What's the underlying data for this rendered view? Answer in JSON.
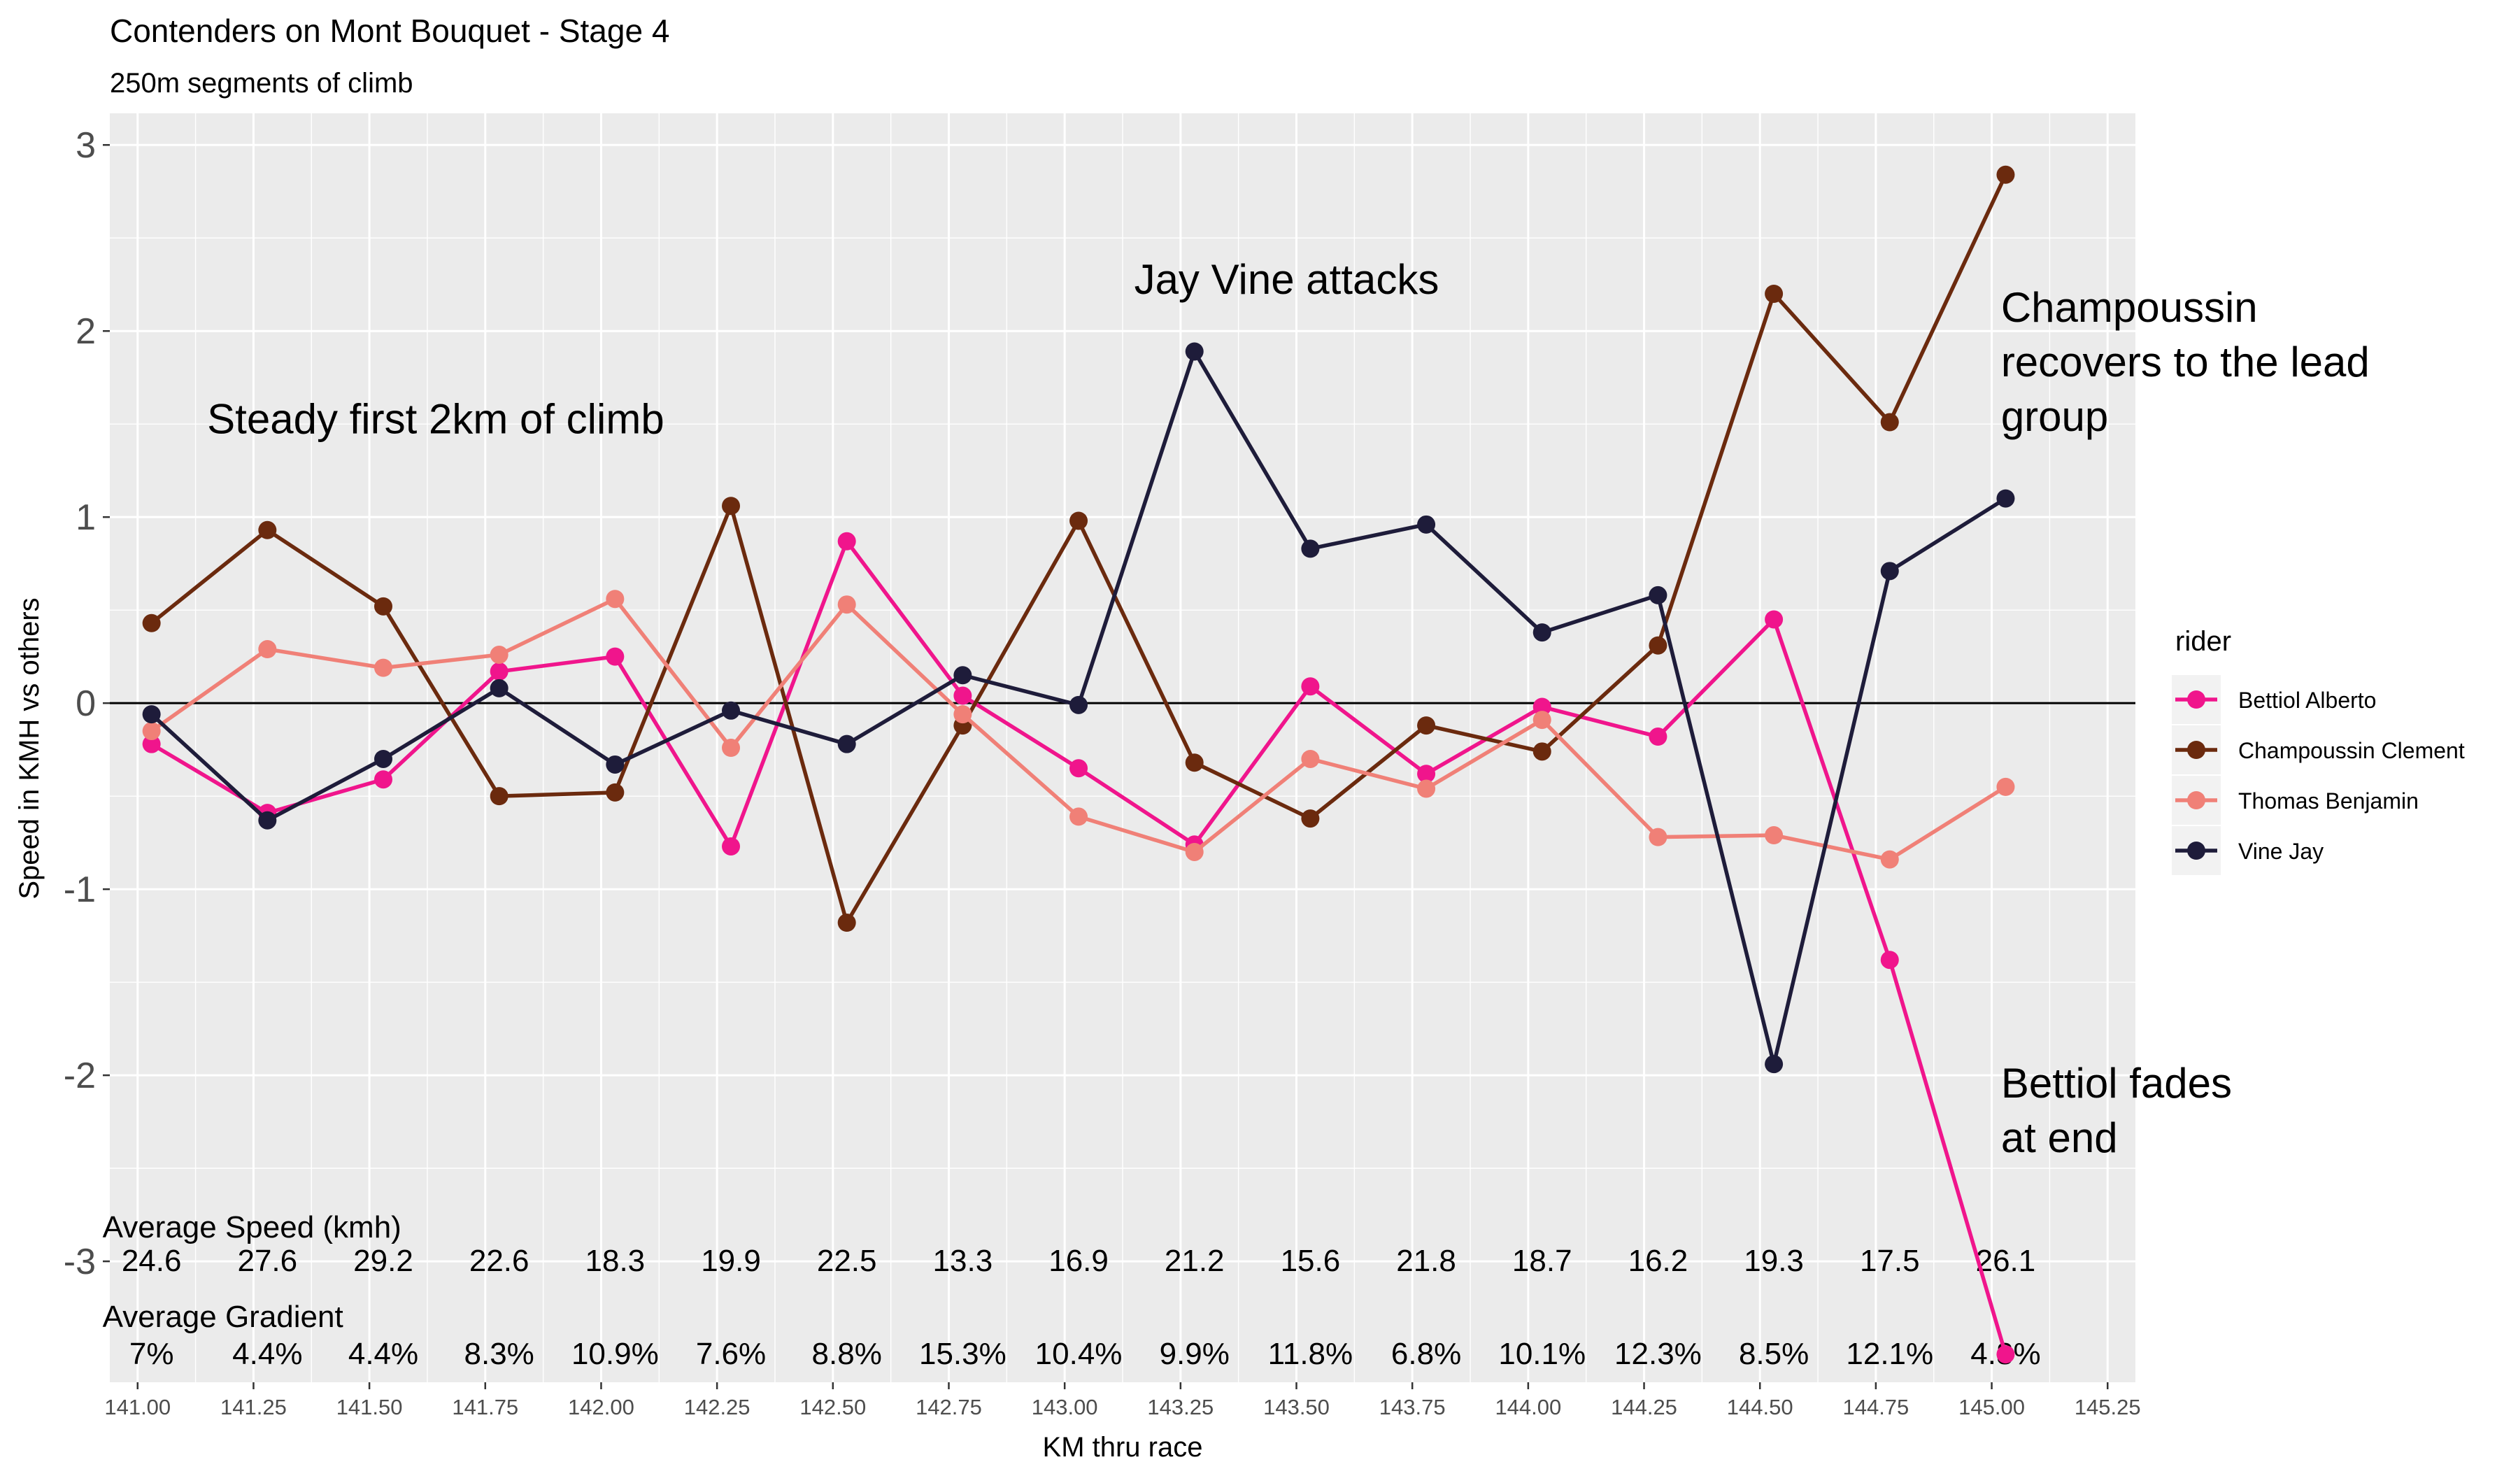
{
  "chart_data": {
    "type": "line",
    "title": "Contenders on Mont Bouquet - Stage 4",
    "subtitle": "250m segments of climb",
    "xlabel": "KM thru race",
    "ylabel": "Speed in KMH vs others",
    "xlim": [
      140.94,
      145.31
    ],
    "ylim": [
      -3.65,
      3.17
    ],
    "x_ticks": [
      "141.00",
      "141.25",
      "141.50",
      "141.75",
      "142.00",
      "142.25",
      "142.50",
      "142.75",
      "143.00",
      "143.25",
      "143.50",
      "143.75",
      "144.00",
      "144.25",
      "144.50",
      "144.75",
      "145.00",
      "145.25"
    ],
    "y_ticks": [
      "3",
      "2",
      "1",
      "0",
      "-1",
      "-2",
      "-3"
    ],
    "grid": true,
    "reference_line_y": 0,
    "legend": {
      "title": "rider",
      "position": "right"
    },
    "x": [
      141.03,
      141.28,
      141.53,
      141.78,
      142.03,
      142.28,
      142.53,
      142.78,
      143.03,
      143.28,
      143.53,
      143.78,
      144.03,
      144.28,
      144.53,
      144.78,
      145.03
    ],
    "series": [
      {
        "name": "Bettiol Alberto",
        "color": "#F0158C",
        "values": [
          -0.22,
          -0.59,
          -0.41,
          0.17,
          0.25,
          -0.77,
          0.87,
          0.04,
          -0.35,
          -0.76,
          0.09,
          -0.38,
          -0.02,
          -0.18,
          0.45,
          -1.38,
          -3.5
        ]
      },
      {
        "name": "Champoussin Clement",
        "color": "#6B2A0E",
        "values": [
          0.43,
          0.93,
          0.52,
          -0.5,
          -0.48,
          1.06,
          -1.18,
          -0.12,
          0.98,
          -0.32,
          -0.62,
          -0.12,
          -0.26,
          0.31,
          2.2,
          1.51,
          2.84
        ]
      },
      {
        "name": "Thomas Benjamin",
        "color": "#F08077",
        "values": [
          -0.15,
          0.29,
          0.19,
          0.26,
          0.56,
          -0.24,
          0.53,
          -0.06,
          -0.61,
          -0.8,
          -0.3,
          -0.46,
          -0.09,
          -0.72,
          -0.71,
          -0.84,
          -0.45
        ]
      },
      {
        "name": "Vine Jay",
        "color": "#1E1C3A",
        "values": [
          -0.06,
          -0.63,
          -0.3,
          0.08,
          -0.33,
          -0.04,
          -0.22,
          0.15,
          -0.01,
          1.89,
          0.83,
          0.96,
          0.38,
          0.58,
          -1.94,
          0.71,
          1.1
        ]
      }
    ],
    "annotations": [
      {
        "text": "Steady first 2km of climb",
        "x": 141.15,
        "y": 1.45
      },
      {
        "text": "Jay Vine attacks",
        "x": 143.15,
        "y": 2.2
      },
      {
        "text": "Champoussin recovers to the lead group",
        "lines": [
          "Champoussin",
          "recovers to the lead",
          "group"
        ],
        "x": 145.02,
        "y": 2.05
      },
      {
        "text": "Bettiol fades at end",
        "lines": [
          "Bettiol fades",
          "at end"
        ],
        "x": 145.02,
        "y": -2.12
      }
    ],
    "table_rows": [
      {
        "label": "Average Speed (kmh)",
        "label_y": -2.82,
        "values_y": -3.0,
        "values": [
          "24.6",
          "27.6",
          "29.2",
          "22.6",
          "18.3",
          "19.9",
          "22.5",
          "13.3",
          "16.9",
          "21.2",
          "15.6",
          "21.8",
          "18.7",
          "16.2",
          "19.3",
          "17.5",
          "26.1"
        ]
      },
      {
        "label": "Average Gradient",
        "label_y": -3.3,
        "values_y": -3.5,
        "values": [
          "7%",
          "4.4%",
          "4.4%",
          "8.3%",
          "10.9%",
          "7.6%",
          "8.8%",
          "15.3%",
          "10.4%",
          "9.9%",
          "11.8%",
          "6.8%",
          "10.1%",
          "12.3%",
          "8.5%",
          "12.1%",
          "4.8%"
        ]
      }
    ]
  }
}
